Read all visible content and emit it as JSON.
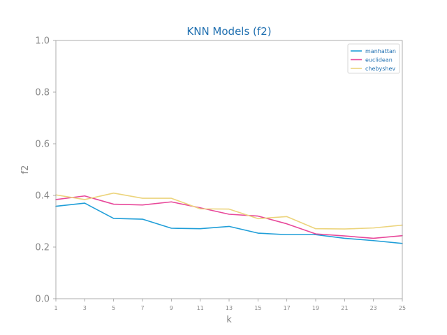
{
  "chart_data": {
    "type": "line",
    "title": "KNN Models (f2)",
    "xlabel": "k",
    "ylabel": "f2",
    "x": [
      1,
      3,
      5,
      7,
      9,
      11,
      13,
      15,
      17,
      19,
      21,
      23,
      25
    ],
    "xlim": [
      1,
      25
    ],
    "ylim": [
      0,
      1
    ],
    "yticks": [
      "0.0",
      "0.2",
      "0.4",
      "0.6",
      "0.8",
      "1.0"
    ],
    "grid": false,
    "legend_position": "top-right",
    "series": [
      {
        "name": "manhattan",
        "color": "#1f9ed8",
        "values": [
          0.358,
          0.37,
          0.311,
          0.308,
          0.273,
          0.271,
          0.28,
          0.254,
          0.248,
          0.248,
          0.234,
          0.225,
          0.214
        ]
      },
      {
        "name": "euclidean",
        "color": "#e8489a",
        "values": [
          0.384,
          0.398,
          0.366,
          0.363,
          0.375,
          0.352,
          0.327,
          0.32,
          0.29,
          0.251,
          0.243,
          0.234,
          0.244
        ]
      },
      {
        "name": "chebyshev",
        "color": "#ecd47c",
        "values": [
          0.402,
          0.384,
          0.409,
          0.389,
          0.389,
          0.348,
          0.347,
          0.31,
          0.318,
          0.271,
          0.27,
          0.274,
          0.285
        ]
      }
    ]
  }
}
